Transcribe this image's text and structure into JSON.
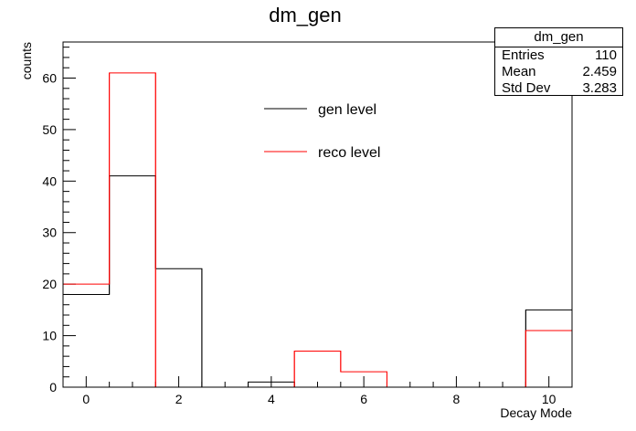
{
  "chart_data": {
    "type": "histogram",
    "title": "dm_gen",
    "xlabel": "Decay Mode",
    "ylabel": "counts",
    "xlim": [
      -0.5,
      10.5
    ],
    "ylim": [
      0,
      67
    ],
    "bin_width": 1,
    "bin_centers": [
      0,
      1,
      2,
      3,
      4,
      5,
      6,
      7,
      8,
      9,
      10
    ],
    "x_ticks": [
      0,
      2,
      4,
      6,
      8,
      10
    ],
    "y_ticks": [
      0,
      10,
      20,
      30,
      40,
      50,
      60
    ],
    "series": [
      {
        "name": "gen level",
        "color": "#000000",
        "values": [
          18,
          41,
          23,
          0,
          1,
          0,
          0,
          0,
          0,
          0,
          15
        ]
      },
      {
        "name": "reco level",
        "color": "#ff0000",
        "values": [
          20,
          61,
          0,
          0,
          0,
          7,
          3,
          0,
          0,
          0,
          11
        ]
      }
    ],
    "legend_position": "top-center",
    "stats_box": {
      "title": "dm_gen",
      "rows": [
        {
          "label": "Entries",
          "value": "110"
        },
        {
          "label": "Mean",
          "value": "2.459"
        },
        {
          "label": "Std Dev",
          "value": "3.283"
        }
      ]
    }
  }
}
